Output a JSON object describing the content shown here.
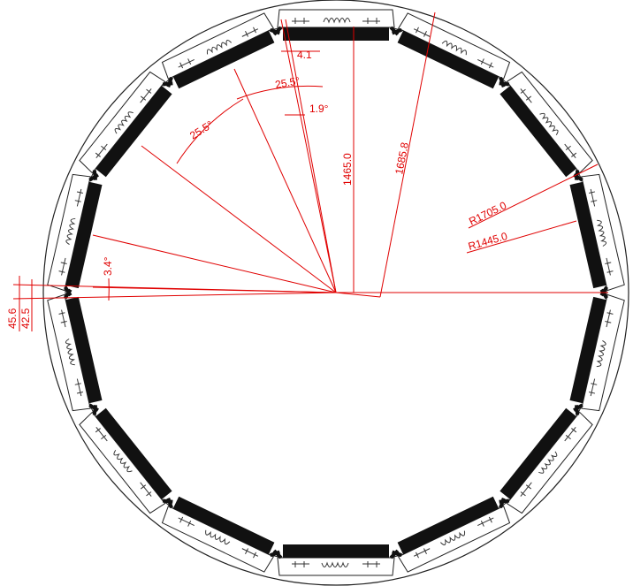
{
  "dimensions": {
    "chord_offset": "4.1",
    "pitch_angle_a": "25.5°",
    "pitch_angle_b": "25.5°",
    "small_angle": "1.9°",
    "inner_height": "1465.0",
    "outer_height": "1685.8",
    "outer_radius": "R1705.0",
    "inner_radius": "R1445.0",
    "gap_angle": "3.4°",
    "gap_outer": "45.6",
    "gap_inner": "42.5"
  }
}
